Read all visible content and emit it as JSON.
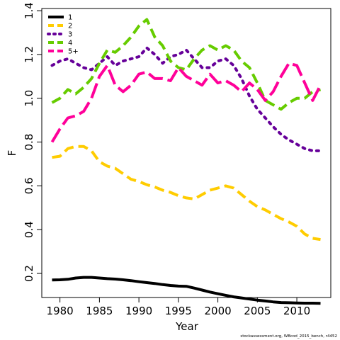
{
  "chart_data": {
    "type": "line",
    "xlabel": "Year",
    "ylabel": "F",
    "xlim": [
      1977.7,
      1914.3
    ],
    "ylim": [
      0.09,
      1.41
    ],
    "xticks": [
      1980,
      1985,
      1990,
      1995,
      2000,
      2005,
      2010
    ],
    "yticks": [
      0.2,
      0.4,
      0.6,
      0.8,
      1.0,
      1.2,
      1.4
    ],
    "ytick_labels": [
      "0.2",
      "0.4",
      "0.6",
      "0.8",
      "1.0",
      "1.2",
      "1.4"
    ],
    "legend_position": "top-left",
    "x": [
      1979,
      1980,
      1981,
      1982,
      1983,
      1984,
      1985,
      1986,
      1987,
      1988,
      1989,
      1990,
      1991,
      1992,
      1993,
      1994,
      1995,
      1996,
      1997,
      1998,
      1999,
      2000,
      2001,
      2002,
      2003,
      2004,
      2005,
      2006,
      2007,
      2008,
      2009,
      2010,
      2011,
      2012,
      2013
    ],
    "series": [
      {
        "name": "1",
        "color": "#000000",
        "dash": "solid",
        "values": [
          0.17,
          0.171,
          0.173,
          0.179,
          0.182,
          0.182,
          0.179,
          0.176,
          0.174,
          0.171,
          0.167,
          0.162,
          0.158,
          0.154,
          0.149,
          0.145,
          0.142,
          0.141,
          0.133,
          0.124,
          0.115,
          0.107,
          0.1,
          0.093,
          0.088,
          0.083,
          0.078,
          0.074,
          0.07,
          0.067,
          0.066,
          0.065,
          0.064,
          0.064,
          0.063
        ]
      },
      {
        "name": "2",
        "color": "#FFCC00",
        "dash": "dashed",
        "values": [
          0.73,
          0.735,
          0.77,
          0.78,
          0.78,
          0.76,
          0.71,
          0.69,
          0.68,
          0.655,
          0.63,
          0.62,
          0.605,
          0.595,
          0.58,
          0.57,
          0.555,
          0.545,
          0.54,
          0.56,
          0.58,
          0.59,
          0.6,
          0.59,
          0.56,
          0.53,
          0.505,
          0.49,
          0.47,
          0.45,
          0.435,
          0.415,
          0.38,
          0.36,
          0.355
        ]
      },
      {
        "name": "3",
        "color": "#660099",
        "dash": "dotted",
        "values": [
          1.15,
          1.17,
          1.18,
          1.16,
          1.14,
          1.13,
          1.16,
          1.19,
          1.15,
          1.17,
          1.18,
          1.19,
          1.23,
          1.2,
          1.16,
          1.19,
          1.2,
          1.22,
          1.18,
          1.14,
          1.14,
          1.17,
          1.18,
          1.15,
          1.09,
          1.01,
          0.95,
          0.91,
          0.87,
          0.835,
          0.81,
          0.79,
          0.77,
          0.76,
          0.76
        ]
      },
      {
        "name": "4",
        "color": "#66CC00",
        "dash": "dashed",
        "values": [
          0.98,
          1.0,
          1.04,
          1.02,
          1.05,
          1.09,
          1.16,
          1.22,
          1.21,
          1.24,
          1.28,
          1.33,
          1.36,
          1.28,
          1.24,
          1.17,
          1.14,
          1.13,
          1.18,
          1.22,
          1.24,
          1.22,
          1.24,
          1.22,
          1.17,
          1.14,
          1.07,
          0.99,
          0.97,
          0.95,
          0.98,
          1.0,
          1.0,
          1.03,
          1.04
        ]
      },
      {
        "name": "5+",
        "color": "#FF0099",
        "dash": "longdash",
        "values": [
          0.8,
          0.86,
          0.91,
          0.92,
          0.94,
          1.0,
          1.1,
          1.15,
          1.06,
          1.03,
          1.06,
          1.11,
          1.12,
          1.09,
          1.09,
          1.08,
          1.14,
          1.1,
          1.08,
          1.06,
          1.11,
          1.07,
          1.08,
          1.06,
          1.03,
          1.07,
          1.04,
          0.99,
          1.03,
          1.1,
          1.16,
          1.15,
          1.07,
          0.99,
          1.06
        ]
      }
    ]
  },
  "footnote": "stockassessment.org, WBcod_2015_bench, r4452"
}
